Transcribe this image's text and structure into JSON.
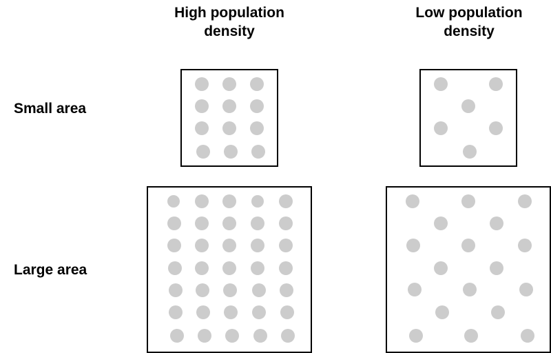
{
  "columns": [
    {
      "label": "High population\ndensity"
    },
    {
      "label": "Low population\ndensity"
    }
  ],
  "rows": [
    {
      "label": "Small area"
    },
    {
      "label": "Large area"
    }
  ],
  "colors": {
    "dot": "#cccccc",
    "border": "#000000"
  },
  "panels": {
    "small_high": {
      "dot_count": 12
    },
    "small_low": {
      "dot_count": 6
    },
    "large_high": {
      "dot_count": 35
    },
    "large_low": {
      "dot_count": 18
    }
  }
}
